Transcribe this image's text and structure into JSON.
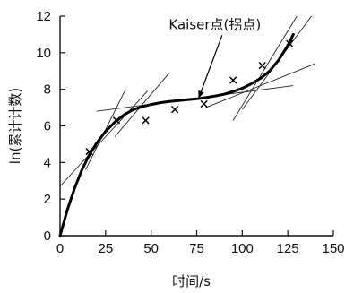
{
  "chart_data": {
    "type": "scatter",
    "title": "",
    "xlabel": "时间/s",
    "ylabel": "ln(累计计数)",
    "xlim": [
      0,
      150
    ],
    "ylim": [
      0,
      12
    ],
    "x_ticks": [
      0,
      25,
      50,
      75,
      100,
      125,
      150
    ],
    "y_ticks": [
      0,
      2,
      4,
      6,
      8,
      10,
      12
    ],
    "grid": false,
    "series": [
      {
        "kind": "points",
        "marker": "x",
        "points": [
          [
            16,
            4.6
          ],
          [
            31,
            6.3
          ],
          [
            47,
            6.3
          ],
          [
            63,
            6.9
          ],
          [
            79,
            7.2
          ],
          [
            95,
            8.5
          ],
          [
            111,
            9.3
          ],
          [
            126,
            10.5
          ]
        ]
      },
      {
        "kind": "fitted-curve",
        "points": [
          [
            0,
            0
          ],
          [
            4,
            1.4
          ],
          [
            8,
            2.6
          ],
          [
            12,
            3.6
          ],
          [
            16,
            4.4
          ],
          [
            20,
            5.05
          ],
          [
            25,
            5.7
          ],
          [
            30,
            6.2
          ],
          [
            35,
            6.6
          ],
          [
            40,
            6.88
          ],
          [
            45,
            7.05
          ],
          [
            50,
            7.17
          ],
          [
            55,
            7.27
          ],
          [
            60,
            7.33
          ],
          [
            65,
            7.38
          ],
          [
            70,
            7.43
          ],
          [
            75,
            7.48
          ],
          [
            80,
            7.55
          ],
          [
            85,
            7.63
          ],
          [
            90,
            7.73
          ],
          [
            95,
            7.88
          ],
          [
            100,
            8.05
          ],
          [
            105,
            8.3
          ],
          [
            110,
            8.6
          ],
          [
            115,
            9.0
          ],
          [
            120,
            9.6
          ],
          [
            125,
            10.4
          ],
          [
            128,
            11.0
          ]
        ]
      }
    ],
    "reference_lines": [
      {
        "from": [
          0,
          2.7
        ],
        "to": [
          48,
          7.9
        ]
      },
      {
        "from": [
          14,
          3.6
        ],
        "to": [
          36,
          8.0
        ]
      },
      {
        "from": [
          30,
          5.4
        ],
        "to": [
          60,
          8.9
        ]
      },
      {
        "from": [
          20,
          6.8
        ],
        "to": [
          128,
          8.2
        ]
      },
      {
        "from": [
          80,
          7.0
        ],
        "to": [
          140,
          9.4
        ]
      },
      {
        "from": [
          100,
          6.9
        ],
        "to": [
          138,
          12.0
        ]
      },
      {
        "from": [
          95,
          6.3
        ],
        "to": [
          130,
          12.0
        ]
      }
    ],
    "annotations": [
      {
        "text": "Kaiser点(拐点)",
        "x": 85,
        "y": 11.3,
        "arrow_to": [
          76,
          7.5
        ]
      }
    ]
  }
}
